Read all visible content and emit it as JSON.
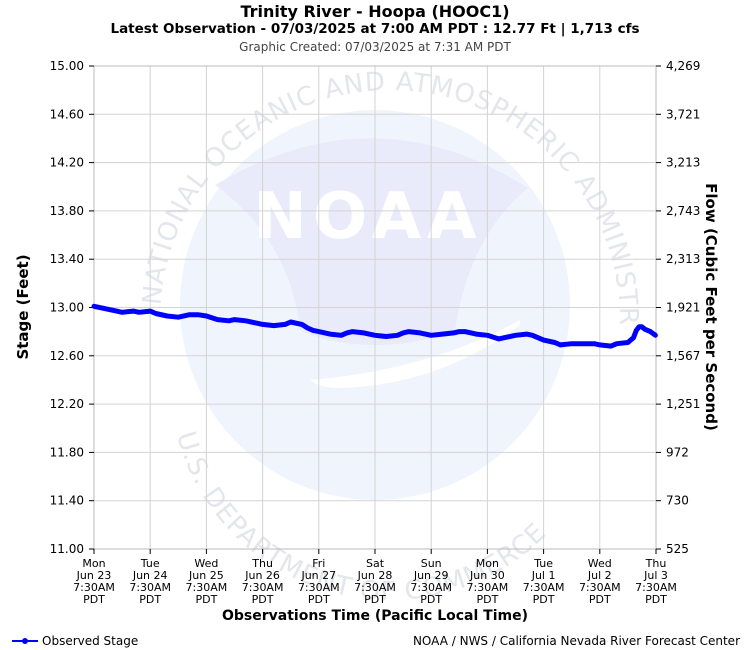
{
  "header": {
    "title": "Trinity River - Hoopa (HOOC1)",
    "subtitle": "Latest Observation - 07/03/2025 at 7:00 AM PDT : 12.77 Ft | 1,713 cfs",
    "created": "Graphic Created: 07/03/2025 at 7:31 AM PDT"
  },
  "footer": {
    "legend_label": "Observed Stage",
    "credit": "NOAA / NWS / California Nevada River Forecast Center"
  },
  "watermark": {
    "logo_text": "NOAA",
    "ring_top": "NATIONAL OCEANIC AND ATMOSPHERIC ADMINISTRATION",
    "ring_bottom": "U.S. DEPARTMENT OF COMMERCE"
  },
  "colors": {
    "series": "#0000ff",
    "grid": "#d3d3d3",
    "watermark": "#e8ecfb"
  },
  "chart_data": {
    "type": "line",
    "ylabel": "Stage (Feet)",
    "y2label": "Flow (Cubic Feet per Second)",
    "xlabel": "Observations Time (Pacific Local Time)",
    "ylim": [
      11.0,
      15.0
    ],
    "yticks": [
      "11.00",
      "11.40",
      "11.80",
      "12.20",
      "12.60",
      "13.00",
      "13.40",
      "13.80",
      "14.20",
      "14.60",
      "15.00"
    ],
    "y2ticks": [
      "525",
      "730",
      "972",
      "1,251",
      "1,567",
      "1,921",
      "2,313",
      "2,743",
      "3,213",
      "3,721",
      "4,269"
    ],
    "xticks": [
      [
        "Mon",
        "Jun 23",
        "7:30AM",
        "PDT"
      ],
      [
        "Tue",
        "Jun 24",
        "7:30AM",
        "PDT"
      ],
      [
        "Wed",
        "Jun 25",
        "7:30AM",
        "PDT"
      ],
      [
        "Thu",
        "Jun 26",
        "7:30AM",
        "PDT"
      ],
      [
        "Fri",
        "Jun 27",
        "7:30AM",
        "PDT"
      ],
      [
        "Sat",
        "Jun 28",
        "7:30AM",
        "PDT"
      ],
      [
        "Sun",
        "Jun 29",
        "7:30AM",
        "PDT"
      ],
      [
        "Mon",
        "Jun 30",
        "7:30AM",
        "PDT"
      ],
      [
        "Tue",
        "Jul 1",
        "7:30AM",
        "PDT"
      ],
      [
        "Wed",
        "Jul 2",
        "7:30AM",
        "PDT"
      ],
      [
        "Thu",
        "Jul 3",
        "7:30AM",
        "PDT"
      ]
    ],
    "xlim": [
      0,
      10
    ],
    "grid": true,
    "legend_position": "bottom-left",
    "series": [
      {
        "name": "Observed Stage",
        "x": [
          0.0,
          0.2,
          0.4,
          0.5,
          0.7,
          0.8,
          1.0,
          1.1,
          1.3,
          1.5,
          1.7,
          1.85,
          2.0,
          2.2,
          2.4,
          2.5,
          2.7,
          2.9,
          3.0,
          3.2,
          3.4,
          3.5,
          3.7,
          3.8,
          3.9,
          4.0,
          4.2,
          4.4,
          4.5,
          4.6,
          4.8,
          5.0,
          5.2,
          5.4,
          5.5,
          5.6,
          5.8,
          6.0,
          6.2,
          6.4,
          6.5,
          6.6,
          6.8,
          7.0,
          7.2,
          7.3,
          7.5,
          7.7,
          7.8,
          8.0,
          8.2,
          8.3,
          8.5,
          8.7,
          8.9,
          9.0,
          9.2,
          9.3,
          9.5,
          9.6,
          9.65,
          9.7,
          9.75,
          9.8,
          9.9,
          9.99
        ],
        "y": [
          13.01,
          12.99,
          12.97,
          12.96,
          12.97,
          12.96,
          12.97,
          12.95,
          12.93,
          12.92,
          12.94,
          12.94,
          12.93,
          12.9,
          12.89,
          12.9,
          12.89,
          12.87,
          12.86,
          12.85,
          12.86,
          12.88,
          12.86,
          12.83,
          12.81,
          12.8,
          12.78,
          12.77,
          12.79,
          12.8,
          12.79,
          12.77,
          12.76,
          12.77,
          12.79,
          12.8,
          12.79,
          12.77,
          12.78,
          12.79,
          12.8,
          12.8,
          12.78,
          12.77,
          12.74,
          12.75,
          12.77,
          12.78,
          12.77,
          12.73,
          12.71,
          12.69,
          12.7,
          12.7,
          12.7,
          12.69,
          12.68,
          12.7,
          12.71,
          12.75,
          12.81,
          12.84,
          12.84,
          12.82,
          12.8,
          12.77
        ]
      }
    ]
  }
}
